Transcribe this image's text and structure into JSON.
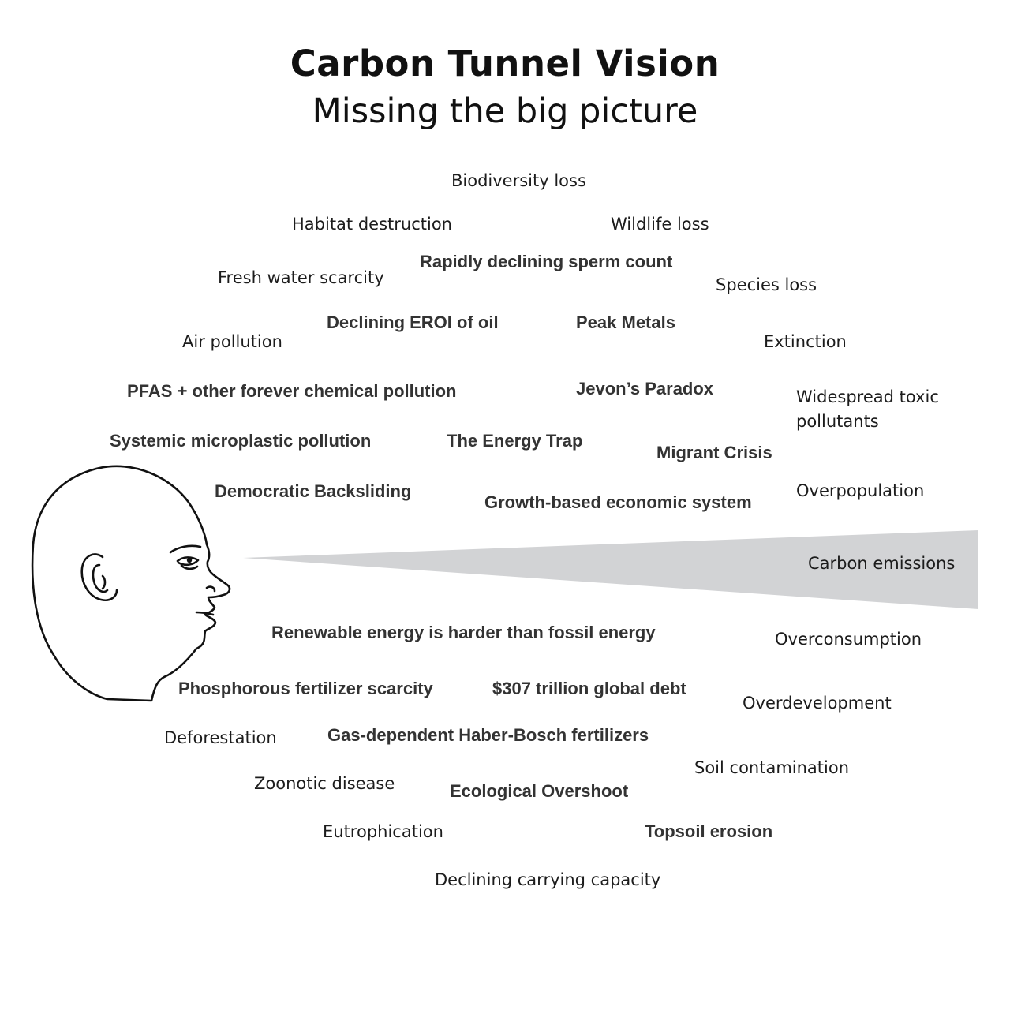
{
  "title": "Carbon Tunnel Vision",
  "subtitle": "Missing the big picture",
  "focus": {
    "label": "Carbon emissions",
    "cone_color": "#d2d3d5"
  },
  "issues": [
    {
      "text": "Biodiversity loss",
      "style": "regular"
    },
    {
      "text": "Habitat destruction",
      "style": "regular"
    },
    {
      "text": "Wildlife loss",
      "style": "regular"
    },
    {
      "text": "Rapidly declining sperm count",
      "style": "bold"
    },
    {
      "text": "Fresh water scarcity",
      "style": "regular"
    },
    {
      "text": "Species loss",
      "style": "regular"
    },
    {
      "text": "Declining EROI of oil",
      "style": "bold"
    },
    {
      "text": "Peak Metals",
      "style": "bold"
    },
    {
      "text": "Air pollution",
      "style": "regular"
    },
    {
      "text": "Extinction",
      "style": "regular"
    },
    {
      "text": "PFAS + other forever chemical pollution",
      "style": "bold"
    },
    {
      "text": "Jevon’s Paradox",
      "style": "bold"
    },
    {
      "text": "Widespread toxic",
      "style": "regular"
    },
    {
      "text": "pollutants",
      "style": "regular"
    },
    {
      "text": "Systemic microplastic pollution",
      "style": "bold"
    },
    {
      "text": "The Energy Trap",
      "style": "bold"
    },
    {
      "text": "Migrant Crisis",
      "style": "bold"
    },
    {
      "text": "Democratic Backsliding",
      "style": "bold"
    },
    {
      "text": "Growth-based economic system",
      "style": "bold"
    },
    {
      "text": "Overpopulation",
      "style": "regular"
    },
    {
      "text": "Renewable energy is harder than fossil energy",
      "style": "bold"
    },
    {
      "text": "Overconsumption",
      "style": "regular"
    },
    {
      "text": "Phosphorous fertilizer scarcity",
      "style": "bold"
    },
    {
      "text": "$307 trillion global debt",
      "style": "bold"
    },
    {
      "text": "Overdevelopment",
      "style": "regular"
    },
    {
      "text": "Deforestation",
      "style": "regular"
    },
    {
      "text": "Gas-dependent Haber-Bosch fertilizers",
      "style": "bold"
    },
    {
      "text": "Soil contamination",
      "style": "regular"
    },
    {
      "text": "Zoonotic disease",
      "style": "regular"
    },
    {
      "text": "Ecological Overshoot",
      "style": "bold"
    },
    {
      "text": "Eutrophication",
      "style": "regular"
    },
    {
      "text": "Topsoil erosion",
      "style": "bold"
    },
    {
      "text": "Declining carrying capacity",
      "style": "regular"
    }
  ]
}
